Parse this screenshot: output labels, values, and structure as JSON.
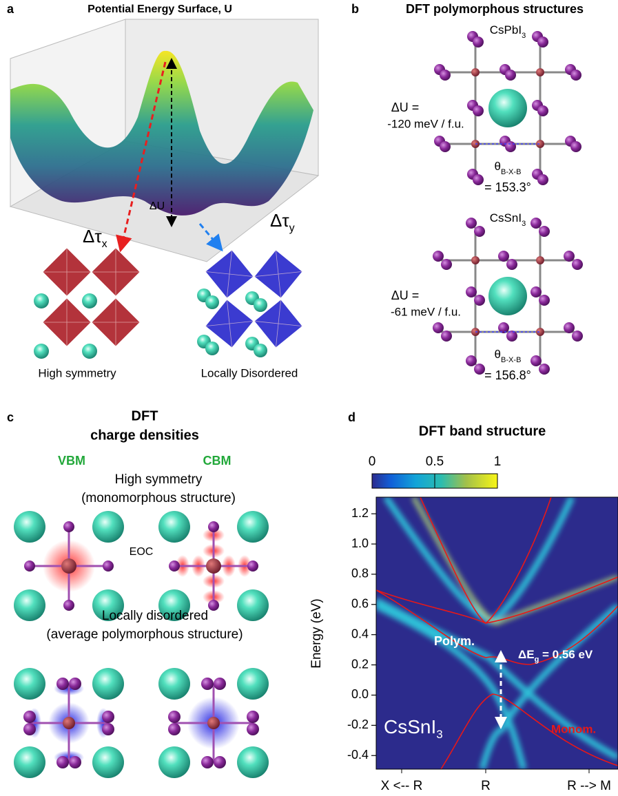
{
  "panels": {
    "a": {
      "label": "a",
      "title": "Potential Energy Surface, U",
      "delta_u": "ΔU",
      "tau_x": {
        "main": "Δτ",
        "sub": "x"
      },
      "tau_y": {
        "main": "Δτ",
        "sub": "y"
      },
      "high_symmetry": "High symmetry",
      "locally_disordered": "Locally Disordered"
    },
    "b": {
      "label": "b",
      "title": "DFT polymorphous structures",
      "structures": [
        {
          "formula": {
            "main": "CsPbI",
            "sub": "3"
          },
          "delta_u": "ΔU =",
          "energy": "-120 meV / f.u.",
          "angle": {
            "main": "θ",
            "sub": "B-X-B"
          },
          "angle_value": "= 153.3°"
        },
        {
          "formula": {
            "main": "CsSnI",
            "sub": "3"
          },
          "delta_u": "ΔU =",
          "energy": "-61 meV / f.u.",
          "angle": {
            "main": "θ",
            "sub": "B-X-B"
          },
          "angle_value": "= 156.8°"
        }
      ]
    },
    "c": {
      "label": "c",
      "title": [
        "DFT",
        "charge densities"
      ],
      "vbm": "VBM",
      "cbm": "CBM",
      "high_symmetry": [
        "High symmetry",
        "(monomorphous structure)"
      ],
      "eoc": "EOC",
      "locally_disordered": [
        "Locally disordered",
        "(average polymorphous structure)"
      ]
    },
    "d": {
      "label": "d",
      "title": "DFT band structure",
      "colorbar": {
        "lim": [
          0,
          1
        ],
        "ticks": [
          0,
          0.5,
          1
        ]
      },
      "ylabel": "Energy (eV)",
      "ylim": [
        -0.49,
        1.31
      ],
      "yticks": [
        1.2,
        {
          "value": 1,
          "label": "1.0"
        },
        0.8,
        0.6,
        0.4,
        0.2,
        {
          "value": 0,
          "label": "0.0"
        },
        -0.2,
        -0.4
      ],
      "xlabels": [
        "X <-- R",
        "R",
        "R --> M"
      ],
      "polym": "Polym.",
      "gap": {
        "main": "ΔE",
        "sub": "g",
        "rest": " = 0.56 eV"
      },
      "formula": {
        "main": "CsSnI",
        "sub": "3"
      },
      "monom": "Monom."
    }
  }
}
